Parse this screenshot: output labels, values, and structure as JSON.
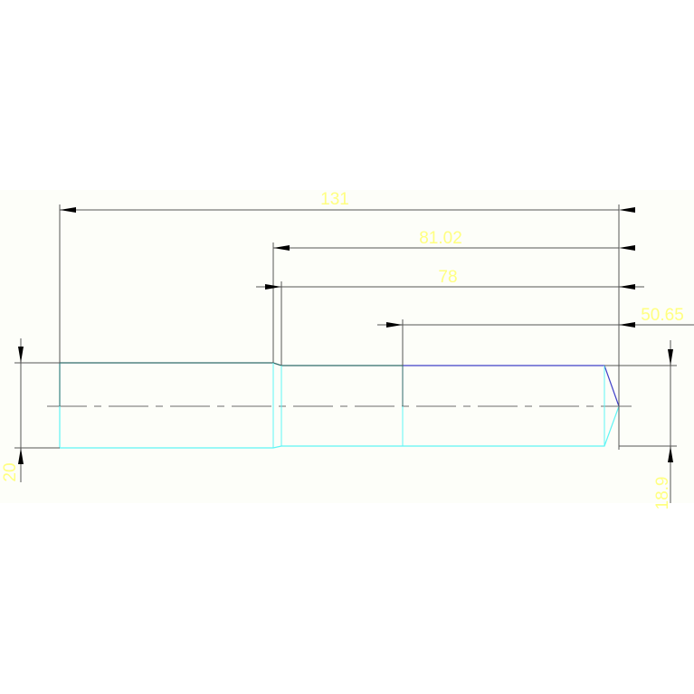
{
  "colors": {
    "outline": "#5ff5f5",
    "edge_dark": "#2f6b6b",
    "edge_blue": "#4040c8",
    "dimension_text": "#ffff80",
    "dimension_line": "#555555",
    "centerline": "#888888"
  },
  "dimensions": {
    "overall_length": "131",
    "length_2": "81.02",
    "length_3": "78",
    "length_4": "50.65",
    "diameter_left": "20",
    "diameter_right": "18.9"
  }
}
